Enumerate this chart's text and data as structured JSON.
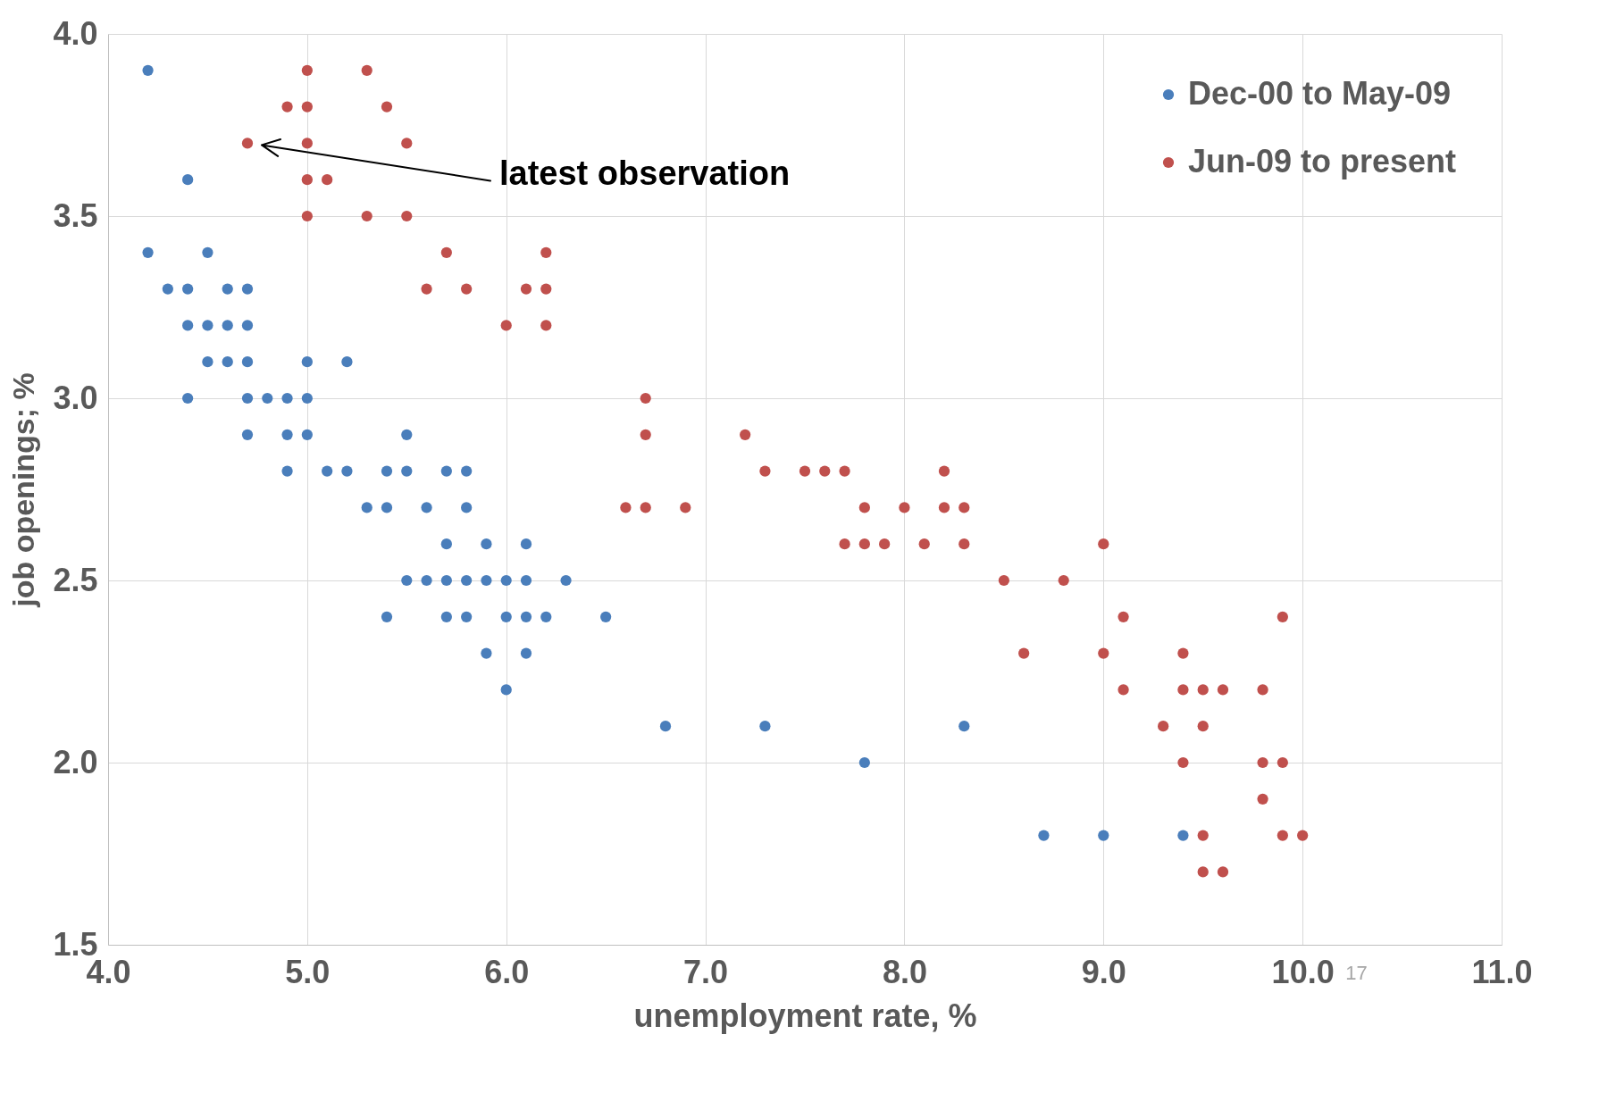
{
  "chart_data": {
    "type": "scatter",
    "xlabel": "unemployment rate, %",
    "ylabel": "job openings; %",
    "xlim": [
      4,
      11
    ],
    "ylim": [
      1.5,
      4
    ],
    "xticks": [
      {
        "value": 4,
        "label": "4.0"
      },
      {
        "value": 5,
        "label": "5.0"
      },
      {
        "value": 6,
        "label": "6.0"
      },
      {
        "value": 7,
        "label": "7.0"
      },
      {
        "value": 8,
        "label": "8.0"
      },
      {
        "value": 9,
        "label": "9.0"
      },
      {
        "value": 10,
        "label": "10.0"
      },
      {
        "value": 11,
        "label": "11.0"
      }
    ],
    "yticks": [
      1.5,
      {
        "value": 2,
        "label": "2.0"
      },
      2.5,
      {
        "value": 3,
        "label": "3.0"
      },
      3.5,
      {
        "value": 4,
        "label": "4.0"
      }
    ],
    "grid": true,
    "legend": "top right",
    "marker": "circle",
    "annotations": [
      "latest observation",
      "17"
    ],
    "series": [
      {
        "name": "Dec-00 to May-09",
        "color": "#4a7ebb",
        "x": [
          4.2,
          4.4,
          4.2,
          4.5,
          4.3,
          4.4,
          4.6,
          4.7,
          4.4,
          4.5,
          4.6,
          4.7,
          4.5,
          4.6,
          4.7,
          5.0,
          5.2,
          4.4,
          4.7,
          4.8,
          4.9,
          5.0,
          4.7,
          4.9,
          5.0,
          5.5,
          4.9,
          5.1,
          5.2,
          5.4,
          5.5,
          5.7,
          5.8,
          5.3,
          5.4,
          5.6,
          5.8,
          5.7,
          5.9,
          6.1,
          5.5,
          5.6,
          5.7,
          5.8,
          5.9,
          6.0,
          6.1,
          6.3,
          5.4,
          5.7,
          5.8,
          6.0,
          6.1,
          6.2,
          6.5,
          5.9,
          6.1,
          6.0,
          6.8,
          7.3,
          8.3,
          7.8,
          8.7,
          9.0,
          9.4
        ],
        "values": [
          3.9,
          3.6,
          3.4,
          3.4,
          3.3,
          3.3,
          3.3,
          3.3,
          3.2,
          3.2,
          3.2,
          3.2,
          3.1,
          3.1,
          3.1,
          3.1,
          3.1,
          3.0,
          3.0,
          3.0,
          3.0,
          3.0,
          2.9,
          2.9,
          2.9,
          2.9,
          2.8,
          2.8,
          2.8,
          2.8,
          2.8,
          2.8,
          2.8,
          2.7,
          2.7,
          2.7,
          2.7,
          2.6,
          2.6,
          2.6,
          2.5,
          2.5,
          2.5,
          2.5,
          2.5,
          2.5,
          2.5,
          2.5,
          2.4,
          2.4,
          2.4,
          2.4,
          2.4,
          2.4,
          2.4,
          2.3,
          2.3,
          2.2,
          2.1,
          2.1,
          2.1,
          2.0,
          1.8,
          1.8,
          1.8
        ]
      },
      {
        "name": "Jun-09 to present",
        "color": "#c0504d",
        "x": [
          5.0,
          5.3,
          4.9,
          5.0,
          5.4,
          4.7,
          5.0,
          5.5,
          5.0,
          5.1,
          5.0,
          5.3,
          5.5,
          5.7,
          6.2,
          5.6,
          5.8,
          6.1,
          6.2,
          6.0,
          6.2,
          6.7,
          6.7,
          7.2,
          7.3,
          7.5,
          7.6,
          7.7,
          8.2,
          6.6,
          6.7,
          6.9,
          7.8,
          8.0,
          8.2,
          8.3,
          7.7,
          7.8,
          7.9,
          8.1,
          8.3,
          9.0,
          8.5,
          8.8,
          9.1,
          9.9,
          8.6,
          9.0,
          9.4,
          9.1,
          9.4,
          9.5,
          9.6,
          9.8,
          9.3,
          9.5,
          9.4,
          9.8,
          9.9,
          9.8,
          9.5,
          9.9,
          10.0,
          9.5,
          9.6
        ],
        "values": [
          3.9,
          3.9,
          3.8,
          3.8,
          3.8,
          3.7,
          3.7,
          3.7,
          3.6,
          3.6,
          3.5,
          3.5,
          3.5,
          3.4,
          3.4,
          3.3,
          3.3,
          3.3,
          3.3,
          3.2,
          3.2,
          3.0,
          2.9,
          2.9,
          2.8,
          2.8,
          2.8,
          2.8,
          2.8,
          2.7,
          2.7,
          2.7,
          2.7,
          2.7,
          2.7,
          2.7,
          2.6,
          2.6,
          2.6,
          2.6,
          2.6,
          2.6,
          2.5,
          2.5,
          2.4,
          2.4,
          2.3,
          2.3,
          2.3,
          2.2,
          2.2,
          2.2,
          2.2,
          2.2,
          2.1,
          2.1,
          2.0,
          2.0,
          2.0,
          1.9,
          1.8,
          1.8,
          1.8,
          1.7,
          1.7
        ]
      }
    ]
  }
}
